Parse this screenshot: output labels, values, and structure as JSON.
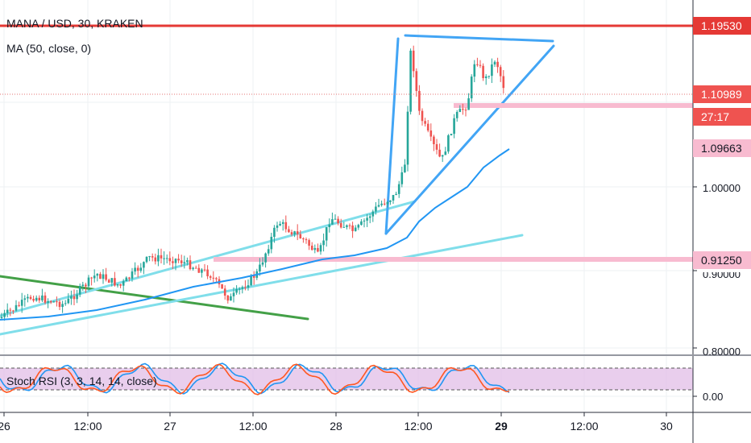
{
  "header": {
    "symbol_title": "MANA / USD, 30, KRAKEN",
    "indicator_label": "MA (50, close, 0)"
  },
  "oscillator": {
    "label": "Stoch RSI (3, 3, 14, 14, close)"
  },
  "price_axis": {
    "ticks": [
      "1.00000",
      "0.90000",
      "0.80000",
      "0.00"
    ],
    "labels": {
      "resistance": "1.19530",
      "last_price": "1.10989",
      "countdown": "27:17",
      "ma_value": "1.09663",
      "support": "0.91250"
    }
  },
  "time_axis": {
    "ticks": [
      {
        "text": "26",
        "bold": false
      },
      {
        "text": "12:00",
        "bold": false
      },
      {
        "text": "27",
        "bold": false
      },
      {
        "text": "12:00",
        "bold": false
      },
      {
        "text": "28",
        "bold": false
      },
      {
        "text": "12:00",
        "bold": false
      },
      {
        "text": "29",
        "bold": true
      },
      {
        "text": "12:00",
        "bold": false
      },
      {
        "text": "30",
        "bold": false
      }
    ]
  },
  "colors": {
    "resistance_line": "#e53935",
    "last_price_line": "#e57373",
    "support_zone": "#f8bbd0",
    "ma_line": "#2196f3",
    "channel_lines": "#80deea",
    "triangle_lines": "#42a5f5",
    "downtrend_line": "#43a047",
    "rsi_band": "#e1bee7",
    "k_line": "#2196f3",
    "d_line": "#ff5722",
    "candle_up": "#26a69a",
    "candle_down": "#ef5350"
  }
}
